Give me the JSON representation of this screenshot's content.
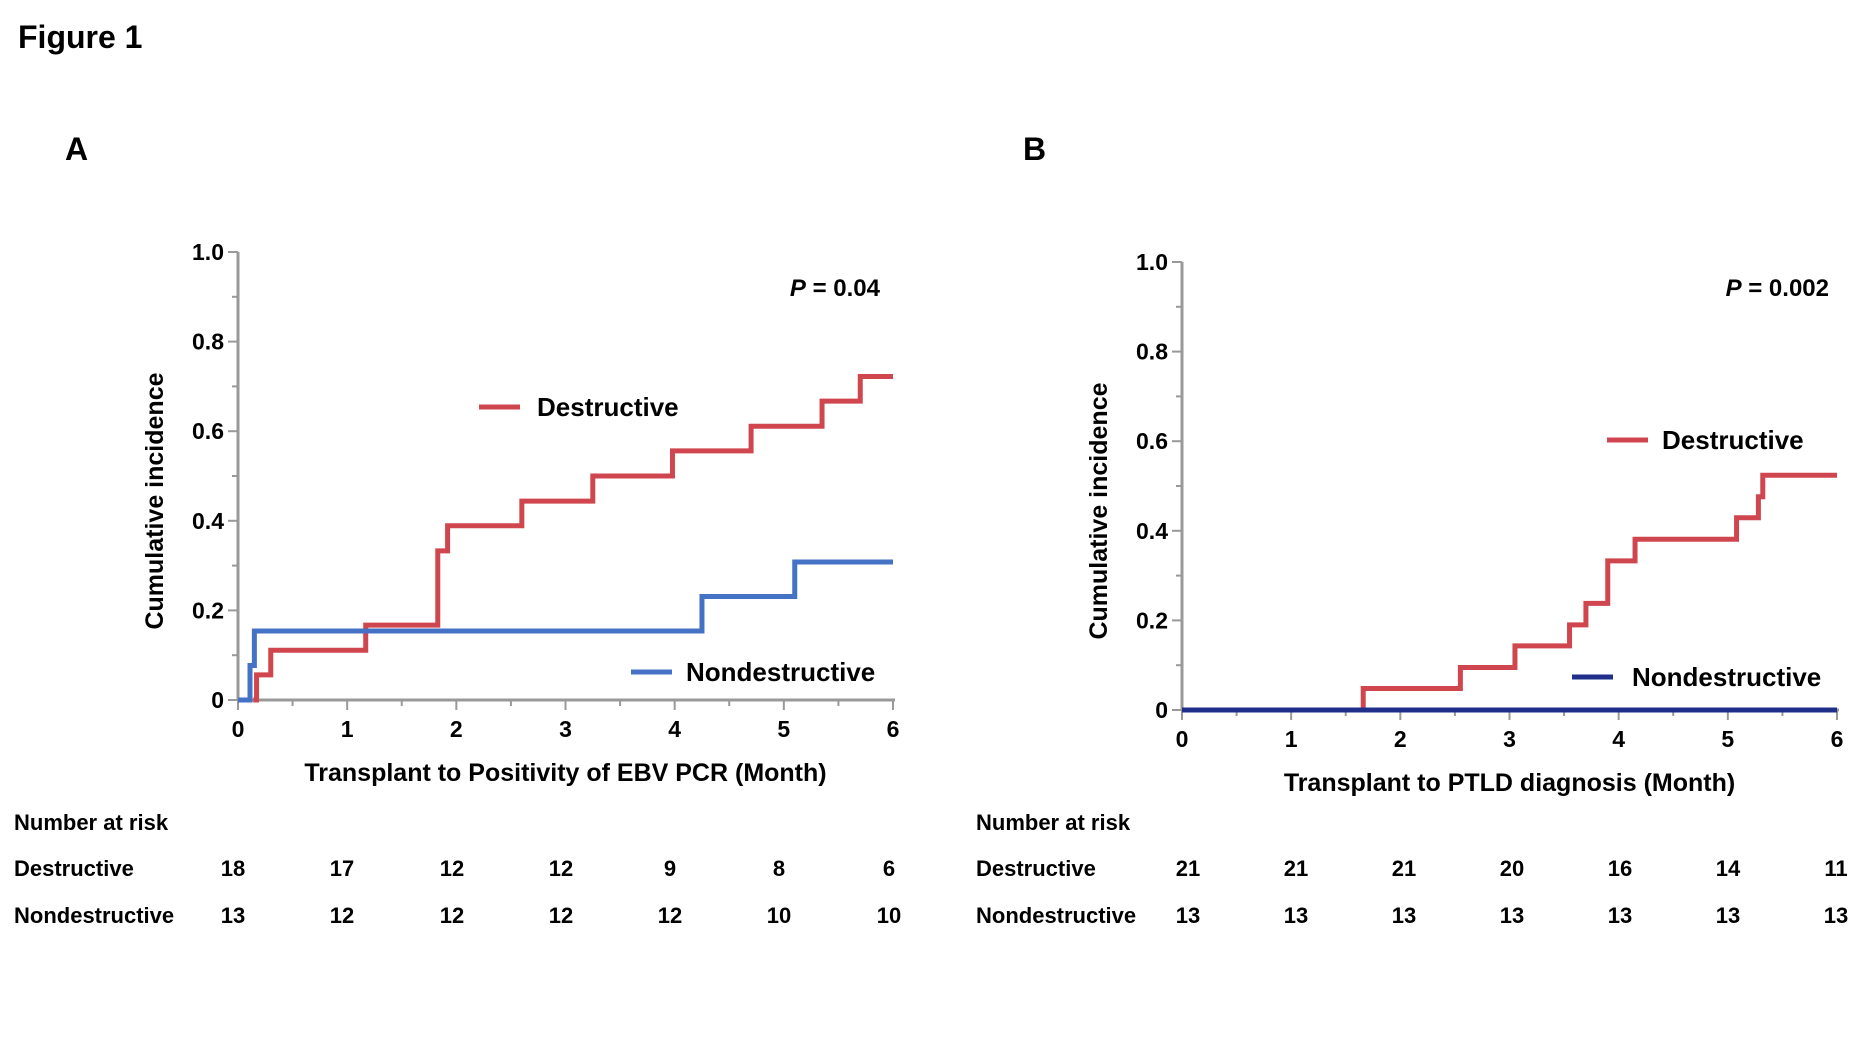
{
  "figure_title": "Figure 1",
  "risk_table_heading": "Number at risk",
  "colors": {
    "destructive": "#d0464f",
    "nondestructive_a": "#4472c4",
    "nondestructive_b": "#1f2f8a",
    "axis": "#999999",
    "text": "#111111"
  },
  "chart_data": [
    {
      "panel_label": "A",
      "type": "line",
      "step": true,
      "xlabel": "Transplant to Positivity of EBV PCR (Month)",
      "ylabel": "Cumulative incidence",
      "xlim": [
        0,
        6
      ],
      "ylim": [
        0,
        1.0
      ],
      "x_ticks": [
        0,
        1,
        2,
        3,
        4,
        5,
        6
      ],
      "y_ticks": [
        0,
        0.2,
        0.4,
        0.6,
        0.8,
        1.0
      ],
      "y_tick_labels": [
        "0",
        "0.2",
        "0.4",
        "0.6",
        "0.8",
        "1.0"
      ],
      "annotation": {
        "italic": "P",
        "rest": " = 0.04"
      },
      "legend_placement": "inside",
      "series": [
        {
          "name": "Destructive",
          "color": "#d0464f",
          "points": [
            [
              0.14,
              0.0
            ],
            [
              0.17,
              0.056
            ],
            [
              0.3,
              0.111
            ],
            [
              1.17,
              0.167
            ],
            [
              1.83,
              0.333
            ],
            [
              1.92,
              0.389
            ],
            [
              2.6,
              0.444
            ],
            [
              3.25,
              0.5
            ],
            [
              3.98,
              0.556
            ],
            [
              4.7,
              0.611
            ],
            [
              5.35,
              0.667
            ],
            [
              5.7,
              0.722
            ],
            [
              6.0,
              0.722
            ]
          ]
        },
        {
          "name": "Nondestructive",
          "color": "#4472c4",
          "points": [
            [
              0.0,
              0.0
            ],
            [
              0.11,
              0.077
            ],
            [
              0.15,
              0.154
            ],
            [
              4.25,
              0.231
            ],
            [
              5.1,
              0.308
            ],
            [
              6.0,
              0.308
            ]
          ]
        }
      ],
      "risk_table": {
        "rows": [
          {
            "label": "Destructive",
            "values": [
              "18",
              "17",
              "12",
              "12",
              "9",
              "8",
              "6"
            ]
          },
          {
            "label": "Nondestructive",
            "values": [
              "13",
              "12",
              "12",
              "12",
              "12",
              "10",
              "10"
            ]
          }
        ]
      }
    },
    {
      "panel_label": "B",
      "type": "line",
      "step": true,
      "xlabel": "Transplant to PTLD diagnosis (Month)",
      "ylabel": "Cumulative incidence",
      "xlim": [
        0,
        6
      ],
      "ylim": [
        0,
        1.0
      ],
      "x_ticks": [
        0,
        1,
        2,
        3,
        4,
        5,
        6
      ],
      "y_ticks": [
        0,
        0.2,
        0.4,
        0.6,
        0.8,
        1.0
      ],
      "y_tick_labels": [
        "0",
        "0.2",
        "0.4",
        "0.6",
        "0.8",
        "1.0"
      ],
      "annotation": {
        "italic": "P",
        "rest": " = 0.002"
      },
      "legend_placement": "inside",
      "series": [
        {
          "name": "Destructive",
          "color": "#d0464f",
          "points": [
            [
              1.65,
              0.0
            ],
            [
              1.66,
              0.048
            ],
            [
              2.55,
              0.095
            ],
            [
              3.05,
              0.143
            ],
            [
              3.55,
              0.19
            ],
            [
              3.7,
              0.238
            ],
            [
              3.9,
              0.333
            ],
            [
              4.15,
              0.381
            ],
            [
              5.08,
              0.429
            ],
            [
              5.28,
              0.476
            ],
            [
              5.32,
              0.524
            ],
            [
              6.0,
              0.524
            ]
          ]
        },
        {
          "name": "Nondestructive",
          "color": "#1f2f8a",
          "points": [
            [
              0.0,
              0.0
            ],
            [
              6.0,
              0.0
            ]
          ]
        }
      ],
      "risk_table": {
        "rows": [
          {
            "label": "Destructive",
            "values": [
              "21",
              "21",
              "21",
              "20",
              "16",
              "14",
              "11"
            ]
          },
          {
            "label": "Nondestructive",
            "values": [
              "13",
              "13",
              "13",
              "13",
              "13",
              "13",
              "13"
            ]
          }
        ]
      }
    }
  ]
}
